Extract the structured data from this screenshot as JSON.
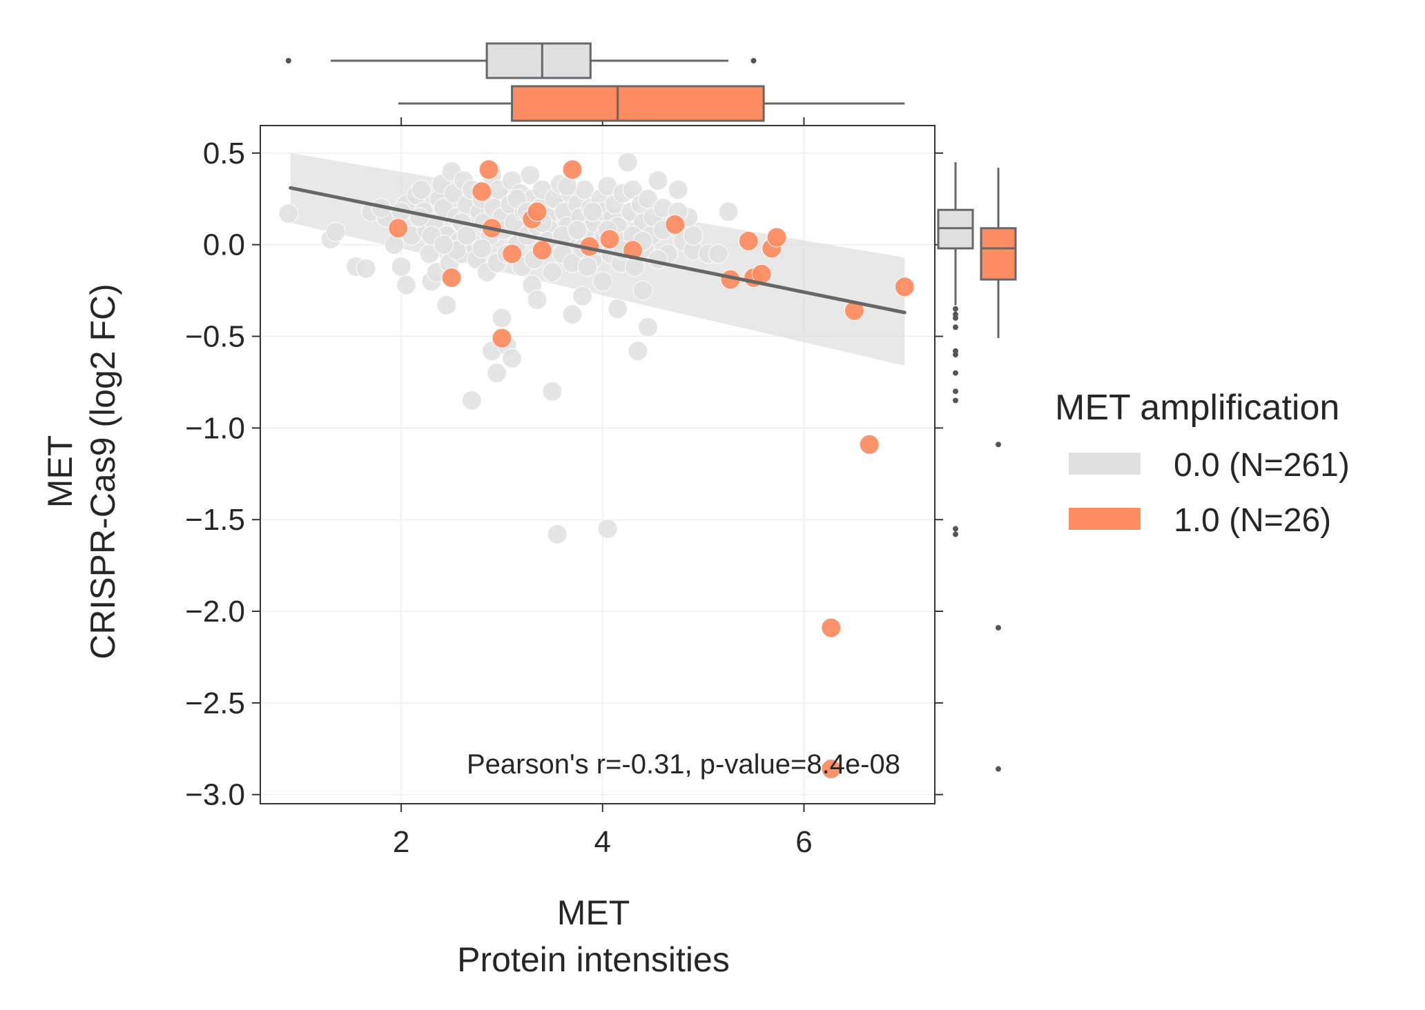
{
  "chart_data": {
    "type": "scatter",
    "xlabel_lines": [
      "MET",
      "Protein intensities"
    ],
    "ylabel_lines": [
      "MET",
      "CRISPR-Cas9 (log2 FC)"
    ],
    "xlim": [
      0.6,
      7.3
    ],
    "ylim": [
      -3.05,
      0.65
    ],
    "xticks": [
      2,
      4,
      6
    ],
    "yticks": [
      0.5,
      0.0,
      -0.5,
      -1.0,
      -1.5,
      -2.0,
      -2.5,
      -3.0
    ],
    "xtick_labels": [
      "2",
      "4",
      "6"
    ],
    "ytick_labels": [
      "0.5",
      "0.0",
      "−0.5",
      "−1.0",
      "−1.5",
      "−2.0",
      "−2.5",
      "−3.0"
    ],
    "grid": true,
    "annotation": "Pearson's r=-0.31, p-value=8.4e-08",
    "regression": {
      "x": [
        0.9,
        7.0
      ],
      "y": [
        0.31,
        -0.37
      ],
      "ci_upper": [
        0.5,
        -0.07
      ],
      "ci_lower": [
        0.12,
        -0.66
      ],
      "color": "#666666"
    },
    "legend": {
      "title": "MET amplification",
      "position": "right",
      "entries": [
        {
          "label": "0.0 (N=261)",
          "color": "#e0e0e0"
        },
        {
          "label": "1.0 (N=26)",
          "color": "#fc8d62"
        }
      ]
    },
    "series": [
      {
        "name": "0.0 (N=261)",
        "color": "#e0e0e0",
        "points": [
          [
            0.88,
            0.17
          ],
          [
            1.3,
            0.03
          ],
          [
            1.35,
            0.07
          ],
          [
            1.55,
            -0.12
          ],
          [
            1.65,
            -0.13
          ],
          [
            1.7,
            0.18
          ],
          [
            1.85,
            0.15
          ],
          [
            1.93,
            0.0
          ],
          [
            2.0,
            -0.12
          ],
          [
            2.05,
            0.22
          ],
          [
            2.1,
            0.05
          ],
          [
            2.15,
            0.27
          ],
          [
            2.2,
            0.3
          ],
          [
            2.22,
            0.18
          ],
          [
            2.25,
            0.08
          ],
          [
            2.28,
            -0.05
          ],
          [
            2.3,
            -0.2
          ],
          [
            2.33,
            0.12
          ],
          [
            2.35,
            -0.15
          ],
          [
            2.38,
            0.25
          ],
          [
            2.4,
            0.33
          ],
          [
            2.42,
            0.2
          ],
          [
            2.45,
            0.05
          ],
          [
            2.48,
            -0.1
          ],
          [
            2.5,
            0.4
          ],
          [
            2.52,
            0.28
          ],
          [
            2.55,
            0.15
          ],
          [
            2.58,
            0.02
          ],
          [
            2.6,
            -0.05
          ],
          [
            2.62,
            0.35
          ],
          [
            2.65,
            0.22
          ],
          [
            2.68,
            0.1
          ],
          [
            2.7,
            0.3
          ],
          [
            2.72,
            0.0
          ],
          [
            2.75,
            -0.08
          ],
          [
            2.78,
            0.18
          ],
          [
            2.8,
            0.25
          ],
          [
            2.82,
            0.12
          ],
          [
            2.85,
            -0.15
          ],
          [
            2.88,
            0.05
          ],
          [
            2.9,
            0.38
          ],
          [
            2.92,
            0.2
          ],
          [
            2.95,
            -0.1
          ],
          [
            2.97,
            0.3
          ],
          [
            3.0,
            0.15
          ],
          [
            3.02,
            0.08
          ],
          [
            3.05,
            -0.05
          ],
          [
            3.08,
            0.22
          ],
          [
            3.1,
            0.35
          ],
          [
            3.12,
            0.12
          ],
          [
            3.15,
            0.0
          ],
          [
            3.18,
            0.28
          ],
          [
            3.2,
            -0.12
          ],
          [
            3.22,
            0.18
          ],
          [
            3.25,
            0.05
          ],
          [
            3.28,
            0.38
          ],
          [
            3.3,
            0.25
          ],
          [
            3.32,
            -0.08
          ],
          [
            3.35,
            0.1
          ],
          [
            3.38,
            0.2
          ],
          [
            3.4,
            0.3
          ],
          [
            3.42,
            -0.02
          ],
          [
            3.45,
            0.15
          ],
          [
            3.48,
            0.08
          ],
          [
            3.5,
            -0.15
          ],
          [
            3.52,
            0.25
          ],
          [
            3.55,
            0.02
          ],
          [
            3.58,
            0.33
          ],
          [
            3.6,
            -0.05
          ],
          [
            3.62,
            0.18
          ],
          [
            3.65,
            0.1
          ],
          [
            3.68,
            0.28
          ],
          [
            3.7,
            -0.1
          ],
          [
            3.72,
            0.05
          ],
          [
            3.75,
            0.22
          ],
          [
            3.78,
            0.15
          ],
          [
            3.8,
            -0.02
          ],
          [
            3.82,
            0.3
          ],
          [
            3.85,
            0.08
          ],
          [
            3.88,
            0.2
          ],
          [
            3.9,
            -0.08
          ],
          [
            3.92,
            0.12
          ],
          [
            3.95,
            0.0
          ],
          [
            3.98,
            0.25
          ],
          [
            4.0,
            0.18
          ],
          [
            4.02,
            0.05
          ],
          [
            4.05,
            0.32
          ],
          [
            4.08,
            -0.05
          ],
          [
            4.1,
            0.15
          ],
          [
            4.12,
            0.22
          ],
          [
            4.15,
            0.1
          ],
          [
            4.18,
            -0.1
          ],
          [
            4.2,
            0.28
          ],
          [
            4.22,
            0.02
          ],
          [
            4.25,
            0.45
          ],
          [
            4.28,
            0.18
          ],
          [
            4.3,
            0.3
          ],
          [
            4.32,
            -0.12
          ],
          [
            4.35,
            0.08
          ],
          [
            4.38,
            0.22
          ],
          [
            4.4,
            0.12
          ],
          [
            4.42,
            -0.02
          ],
          [
            4.45,
            0.25
          ],
          [
            4.48,
            0.05
          ],
          [
            4.5,
            0.15
          ],
          [
            4.55,
            0.35
          ],
          [
            4.6,
            0.2
          ],
          [
            4.65,
            -0.05
          ],
          [
            4.7,
            0.1
          ],
          [
            4.75,
            0.3
          ],
          [
            4.8,
            0.02
          ],
          [
            4.85,
            0.15
          ],
          [
            4.9,
            -0.03
          ],
          [
            5.05,
            -0.05
          ],
          [
            5.15,
            -0.05
          ],
          [
            5.25,
            0.18
          ],
          [
            2.05,
            -0.22
          ],
          [
            2.45,
            -0.33
          ],
          [
            2.9,
            -0.58
          ],
          [
            2.95,
            -0.7
          ],
          [
            3.05,
            -0.55
          ],
          [
            3.1,
            -0.62
          ],
          [
            3.0,
            -0.4
          ],
          [
            2.7,
            -0.85
          ],
          [
            3.3,
            -0.22
          ],
          [
            3.35,
            -0.3
          ],
          [
            3.5,
            -0.8
          ],
          [
            3.7,
            -0.38
          ],
          [
            3.8,
            -0.28
          ],
          [
            4.15,
            -0.35
          ],
          [
            4.35,
            -0.58
          ],
          [
            4.4,
            -0.25
          ],
          [
            4.45,
            -0.45
          ],
          [
            3.55,
            -1.58
          ],
          [
            4.05,
            -1.55
          ],
          [
            2.6,
            0.12
          ],
          [
            2.8,
            -0.02
          ],
          [
            3.15,
            0.25
          ],
          [
            3.45,
            0.02
          ],
          [
            3.65,
            0.32
          ],
          [
            3.85,
            -0.12
          ],
          [
            4.0,
            -0.2
          ],
          [
            4.05,
            0.08
          ],
          [
            4.3,
            0.05
          ],
          [
            4.55,
            -0.08
          ],
          [
            4.75,
            0.18
          ],
          [
            4.9,
            0.05
          ],
          [
            2.3,
            0.05
          ],
          [
            2.55,
            -0.03
          ],
          [
            3.25,
            0.18
          ],
          [
            3.6,
            0.05
          ],
          [
            3.9,
            0.18
          ],
          [
            4.2,
            -0.03
          ],
          [
            4.6,
            0.08
          ],
          [
            1.8,
            0.2
          ],
          [
            2.0,
            0.18
          ],
          [
            2.18,
            0.15
          ],
          [
            2.42,
            0.0
          ],
          [
            2.65,
            0.05
          ],
          [
            3.4,
            0.12
          ],
          [
            3.75,
            0.08
          ],
          [
            4.4,
            0.02
          ]
        ]
      },
      {
        "name": "1.0 (N=26)",
        "color": "#fc8d62",
        "points": [
          [
            1.97,
            0.09
          ],
          [
            2.5,
            -0.18
          ],
          [
            2.8,
            0.29
          ],
          [
            2.87,
            0.41
          ],
          [
            2.9,
            0.09
          ],
          [
            3.0,
            -0.51
          ],
          [
            3.1,
            -0.05
          ],
          [
            3.3,
            0.14
          ],
          [
            3.35,
            0.18
          ],
          [
            3.4,
            -0.03
          ],
          [
            3.7,
            0.41
          ],
          [
            3.87,
            -0.01
          ],
          [
            4.07,
            0.03
          ],
          [
            4.3,
            -0.03
          ],
          [
            4.72,
            0.11
          ],
          [
            5.27,
            -0.19
          ],
          [
            5.45,
            0.02
          ],
          [
            5.5,
            -0.18
          ],
          [
            5.58,
            -0.16
          ],
          [
            5.68,
            -0.02
          ],
          [
            5.73,
            0.04
          ],
          [
            6.5,
            -0.36
          ],
          [
            6.65,
            -1.09
          ],
          [
            6.27,
            -2.09
          ],
          [
            6.27,
            -2.86
          ],
          [
            7.0,
            -0.23
          ]
        ]
      }
    ],
    "marginal_x": {
      "groups": [
        {
          "name": "0.0 (N=261)",
          "color": "#e0e0e0",
          "whisker_low": 1.3,
          "q1": 2.85,
          "median": 3.4,
          "q3": 3.88,
          "whisker_high": 5.25,
          "outliers": [
            0.88,
            5.5
          ]
        },
        {
          "name": "1.0 (N=26)",
          "color": "#fc8d62",
          "whisker_low": 1.97,
          "q1": 3.1,
          "median": 4.15,
          "q3": 5.6,
          "whisker_high": 7.0,
          "outliers": []
        }
      ]
    },
    "marginal_y": {
      "groups": [
        {
          "name": "0.0 (N=261)",
          "color": "#e0e0e0",
          "whisker_low": -0.33,
          "q1": -0.02,
          "median": 0.09,
          "q3": 0.19,
          "whisker_high": 0.45,
          "outliers": [
            -0.35,
            -0.38,
            -0.4,
            -0.45,
            -0.58,
            -0.6,
            -0.7,
            -0.8,
            -0.85,
            -1.55,
            -1.58
          ]
        },
        {
          "name": "1.0 (N=26)",
          "color": "#fc8d62",
          "whisker_low": -0.51,
          "q1": -0.19,
          "median": -0.02,
          "q3": 0.09,
          "whisker_high": 0.42,
          "outliers": [
            -1.09,
            -2.09,
            -2.86
          ]
        }
      ]
    }
  }
}
